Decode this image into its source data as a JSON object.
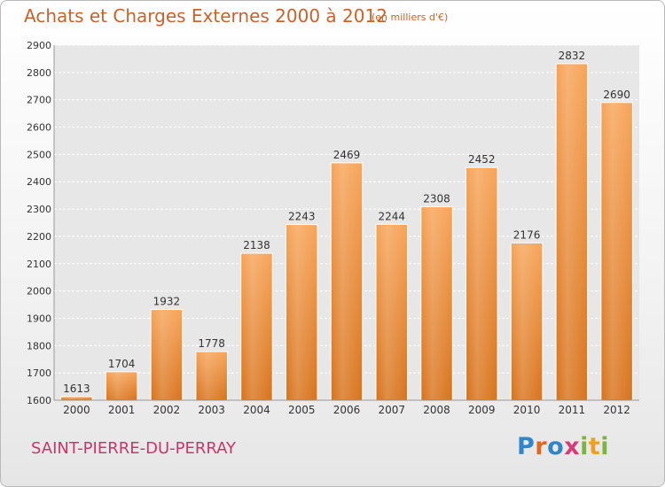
{
  "title": "Achats et Charges Externes 2000 à 2012",
  "subtitle": "(en milliers d'€)",
  "commune": "SAINT-PIERRE-DU-PERRAY",
  "logo": {
    "text": "Proxiti",
    "letters": [
      {
        "ch": "P",
        "color": "#2f86c8"
      },
      {
        "ch": "r",
        "color": "#e2671f"
      },
      {
        "ch": "o",
        "color": "#2f86c8"
      },
      {
        "ch": "x",
        "color": "#d93a7a"
      },
      {
        "ch": "i",
        "color": "#7cb342"
      },
      {
        "ch": "t",
        "color": "#f0a020"
      },
      {
        "ch": "i",
        "color": "#7cb342"
      }
    ]
  },
  "chart_data": {
    "type": "bar",
    "categories": [
      "2000",
      "2001",
      "2002",
      "2003",
      "2004",
      "2005",
      "2006",
      "2007",
      "2008",
      "2009",
      "2010",
      "2011",
      "2012"
    ],
    "values": [
      1613,
      1704,
      1932,
      1778,
      2138,
      2243,
      2469,
      2244,
      2308,
      2452,
      2176,
      2832,
      2690
    ],
    "ylim": [
      1600,
      2900
    ],
    "yticks": [
      1600,
      1700,
      1800,
      1900,
      2000,
      2100,
      2200,
      2300,
      2400,
      2500,
      2600,
      2700,
      2800,
      2900
    ],
    "grid": true,
    "bar_color": "#f0963e"
  }
}
